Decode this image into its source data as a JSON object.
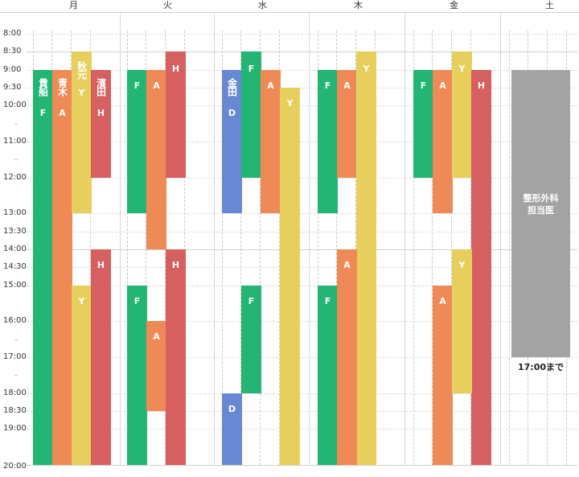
{
  "days": [
    "月",
    "火",
    "水",
    "木",
    "金",
    "土"
  ],
  "times": [
    "8:00",
    "8:30",
    "9:00",
    "9:30",
    "10:00",
    "11:00",
    "12:00",
    "13:00",
    "13:30",
    "14:00",
    "14:30",
    "15:00",
    "16:00",
    "17:00",
    "18:00",
    "18:30",
    "19:00",
    "20:00"
  ],
  "colors": {
    "F": "#22b573",
    "A": "#ef8a56",
    "Y": "#e6cf5c",
    "H": "#d65f5f",
    "D": "#6888d4",
    "saturday": "#a3a3a3"
  },
  "doctors": {
    "F": "貴船",
    "A": "青木",
    "Y": "秋元",
    "H": "濱田",
    "D": "金田"
  },
  "shifts": [
    {
      "day": 0,
      "lane": 0,
      "code": "F",
      "start": "9:00",
      "end": "20:00",
      "name": "貴船"
    },
    {
      "day": 0,
      "lane": 1,
      "code": "A",
      "start": "9:00",
      "end": "20:00",
      "name": "青木"
    },
    {
      "day": 0,
      "lane": 2,
      "code": "Y",
      "start": "8:30",
      "end": "13:00",
      "name": "秋元"
    },
    {
      "day": 0,
      "lane": 3,
      "code": "H",
      "start": "9:00",
      "end": "12:00",
      "name": "濱田"
    },
    {
      "day": 0,
      "lane": 2,
      "code": "Y",
      "start": "15:00",
      "end": "20:00"
    },
    {
      "day": 0,
      "lane": 3,
      "code": "H",
      "start": "14:00",
      "end": "20:00"
    },
    {
      "day": 1,
      "lane": 0,
      "code": "F",
      "start": "9:00",
      "end": "13:00"
    },
    {
      "day": 1,
      "lane": 1,
      "code": "A",
      "start": "9:00",
      "end": "14:00"
    },
    {
      "day": 1,
      "lane": 2,
      "code": "H",
      "start": "8:30",
      "end": "12:00"
    },
    {
      "day": 1,
      "lane": 0,
      "code": "F",
      "start": "15:00",
      "end": "20:00"
    },
    {
      "day": 1,
      "lane": 1,
      "code": "A",
      "start": "16:00",
      "end": "18:30"
    },
    {
      "day": 1,
      "lane": 2,
      "code": "H",
      "start": "14:00",
      "end": "20:00"
    },
    {
      "day": 2,
      "lane": 0,
      "code": "D",
      "start": "9:00",
      "end": "13:00",
      "name": "金田"
    },
    {
      "day": 2,
      "lane": 1,
      "code": "F",
      "start": "8:30",
      "end": "12:00"
    },
    {
      "day": 2,
      "lane": 2,
      "code": "A",
      "start": "9:00",
      "end": "13:00"
    },
    {
      "day": 2,
      "lane": 3,
      "code": "Y",
      "start": "9:30",
      "end": "20:00"
    },
    {
      "day": 2,
      "lane": 1,
      "code": "F",
      "start": "15:00",
      "end": "18:00"
    },
    {
      "day": 2,
      "lane": 0,
      "code": "D",
      "start": "18:00",
      "end": "20:00"
    },
    {
      "day": 3,
      "lane": 0,
      "code": "F",
      "start": "9:00",
      "end": "13:00"
    },
    {
      "day": 3,
      "lane": 1,
      "code": "A",
      "start": "9:00",
      "end": "12:00"
    },
    {
      "day": 3,
      "lane": 2,
      "code": "Y",
      "start": "8:30",
      "end": "20:00"
    },
    {
      "day": 3,
      "lane": 0,
      "code": "F",
      "start": "15:00",
      "end": "20:00"
    },
    {
      "day": 3,
      "lane": 1,
      "code": "A",
      "start": "14:00",
      "end": "20:00"
    },
    {
      "day": 4,
      "lane": 0,
      "code": "F",
      "start": "9:00",
      "end": "12:00"
    },
    {
      "day": 4,
      "lane": 1,
      "code": "A",
      "start": "9:00",
      "end": "13:00"
    },
    {
      "day": 4,
      "lane": 2,
      "code": "Y",
      "start": "8:30",
      "end": "12:00"
    },
    {
      "day": 4,
      "lane": 3,
      "code": "H",
      "start": "9:00",
      "end": "20:00"
    },
    {
      "day": 4,
      "lane": 1,
      "code": "A",
      "start": "15:00",
      "end": "20:00"
    },
    {
      "day": 4,
      "lane": 2,
      "code": "Y",
      "start": "14:00",
      "end": "18:00"
    }
  ],
  "saturday": {
    "start": "9:00",
    "end": "17:00",
    "label": "整形外科\n担当医",
    "note": "17:00まで"
  }
}
